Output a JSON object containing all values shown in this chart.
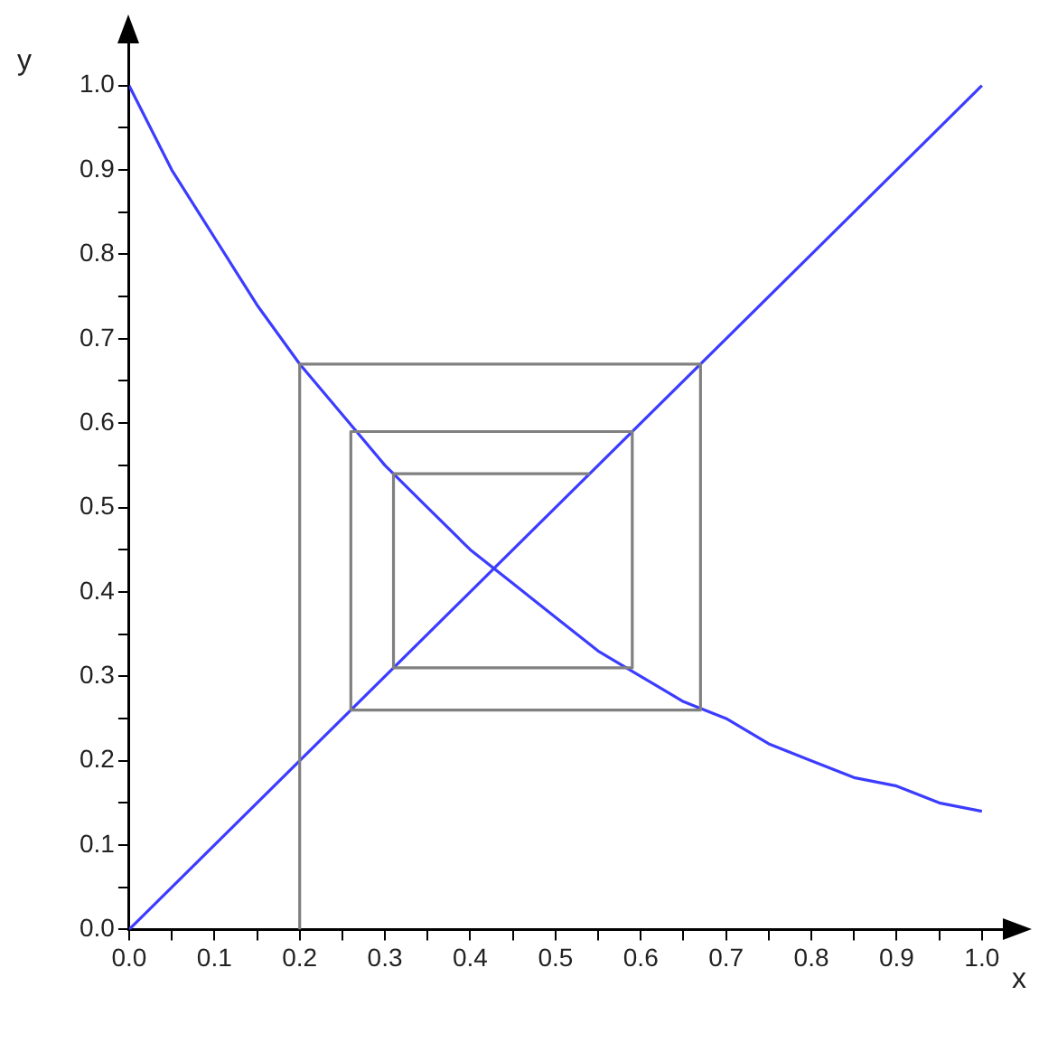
{
  "chart_data": {
    "type": "line",
    "xlabel": "x",
    "ylabel": "y",
    "grid": false,
    "legend": false,
    "marker": "none",
    "line_style": "solid",
    "xlim": [
      0,
      1.05
    ],
    "ylim": [
      0,
      1.05
    ],
    "xticks": [
      {
        "value": 0,
        "label": "0.0"
      },
      {
        "value": 0.05,
        "label": null
      },
      {
        "value": 0.1,
        "label": "0.1"
      },
      {
        "value": 0.15,
        "label": null
      },
      {
        "value": 0.2,
        "label": "0.2"
      },
      {
        "value": 0.25,
        "label": null
      },
      {
        "value": 0.3,
        "label": "0.3"
      },
      {
        "value": 0.35,
        "label": null
      },
      {
        "value": 0.4,
        "label": "0.4"
      },
      {
        "value": 0.45,
        "label": null
      },
      {
        "value": 0.5,
        "label": "0.5"
      },
      {
        "value": 0.55,
        "label": null
      },
      {
        "value": 0.6,
        "label": "0.6"
      },
      {
        "value": 0.65,
        "label": null
      },
      {
        "value": 0.7,
        "label": "0.7"
      },
      {
        "value": 0.75,
        "label": null
      },
      {
        "value": 0.8,
        "label": "0.8"
      },
      {
        "value": 0.85,
        "label": null
      },
      {
        "value": 0.9,
        "label": "0.9"
      },
      {
        "value": 0.95,
        "label": null
      },
      {
        "value": 1,
        "label": "1.0"
      }
    ],
    "yticks": [
      {
        "value": 0,
        "label": "0.0"
      },
      {
        "value": 0.05,
        "label": null
      },
      {
        "value": 0.1,
        "label": "0.1"
      },
      {
        "value": 0.15,
        "label": null
      },
      {
        "value": 0.2,
        "label": "0.2"
      },
      {
        "value": 0.25,
        "label": null
      },
      {
        "value": 0.3,
        "label": "0.3"
      },
      {
        "value": 0.35,
        "label": null
      },
      {
        "value": 0.4,
        "label": "0.4"
      },
      {
        "value": 0.45,
        "label": null
      },
      {
        "value": 0.5,
        "label": "0.5"
      },
      {
        "value": 0.55,
        "label": null
      },
      {
        "value": 0.6,
        "label": "0.6"
      },
      {
        "value": 0.65,
        "label": null
      },
      {
        "value": 0.7,
        "label": "0.7"
      },
      {
        "value": 0.75,
        "label": null
      },
      {
        "value": 0.8,
        "label": "0.8"
      },
      {
        "value": 0.85,
        "label": null
      },
      {
        "value": 0.9,
        "label": "0.9"
      },
      {
        "value": 0.95,
        "label": null
      },
      {
        "value": 1,
        "label": "1.0"
      }
    ],
    "series": [
      {
        "color": "#808080",
        "x": [
          0.2,
          0.2,
          0.67,
          0.67,
          0.26,
          0.26,
          0.59,
          0.59,
          0.31,
          0.31,
          0.54
        ],
        "values": [
          0,
          0.67,
          0.67,
          0.26,
          0.26,
          0.59,
          0.59,
          0.31,
          0.31,
          0.54,
          0.54
        ]
      },
      {
        "color": "#3c3cff",
        "x": [
          0,
          1
        ],
        "values": [
          0,
          1
        ]
      },
      {
        "color": "#3c3cff",
        "x": [
          0,
          0.05,
          0.1,
          0.15,
          0.2,
          0.25,
          0.3,
          0.35,
          0.4,
          0.45,
          0.5,
          0.55,
          0.6,
          0.65,
          0.7,
          0.75,
          0.8,
          0.85,
          0.9,
          0.95,
          1
        ],
        "values": [
          1,
          0.9,
          0.82,
          0.74,
          0.67,
          0.61,
          0.55,
          0.5,
          0.45,
          0.41,
          0.37,
          0.33,
          0.3,
          0.27,
          0.25,
          0.22,
          0.2,
          0.18,
          0.17,
          0.15,
          0.14
        ]
      }
    ]
  }
}
